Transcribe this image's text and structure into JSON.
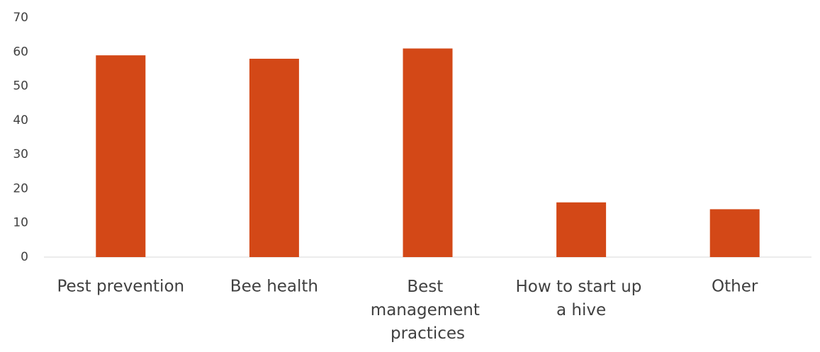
{
  "chart_data": {
    "type": "bar",
    "categories": [
      "Pest prevention",
      "Bee health",
      "Best management practices",
      "How to start up a hive",
      "Other"
    ],
    "values": [
      59,
      58,
      61,
      16,
      14
    ],
    "color": "#d34817",
    "ylim": [
      0,
      70
    ],
    "yticks": [
      0,
      10,
      20,
      30,
      40,
      50,
      60,
      70
    ],
    "grid": false
  }
}
